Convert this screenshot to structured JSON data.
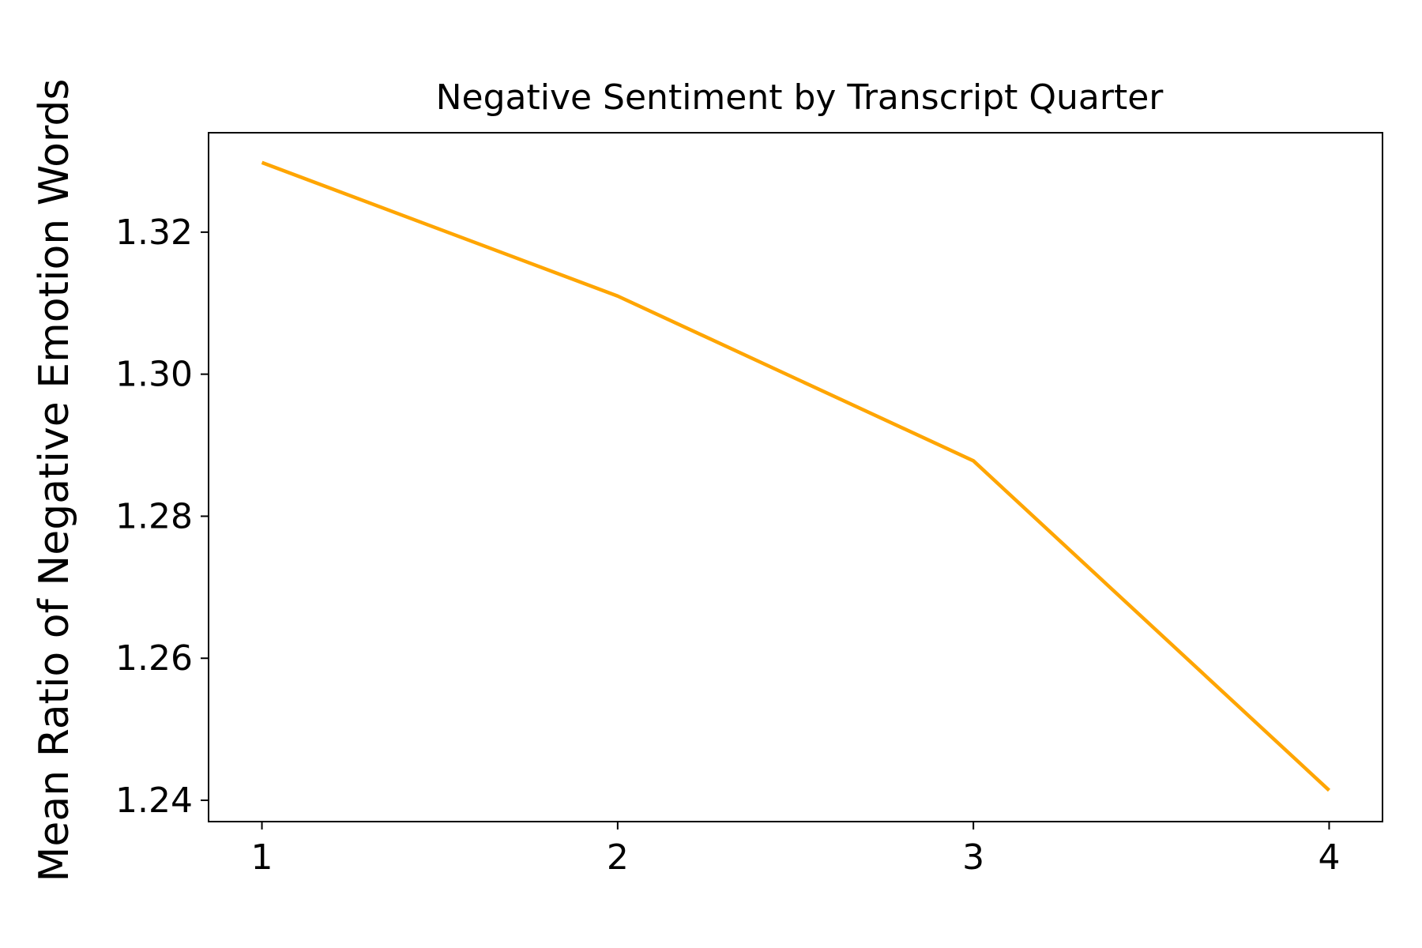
{
  "chart_data": {
    "type": "line",
    "title": "Negative Sentiment by Transcript Quarter",
    "xlabel": "",
    "ylabel": "Mean Ratio of Negative Emotion Words",
    "x": [
      1,
      2,
      3,
      4
    ],
    "xticks": [
      "1",
      "2",
      "3",
      "4"
    ],
    "xlim": [
      0.85,
      4.15
    ],
    "ylim": [
      1.237,
      1.334
    ],
    "yticks": [
      1.24,
      1.26,
      1.28,
      1.3,
      1.32
    ],
    "ytick_labels": [
      "1.24",
      "1.26",
      "1.28",
      "1.30",
      "1.32"
    ],
    "series": [
      {
        "values": [
          1.3298,
          1.311,
          1.2878,
          1.2414
        ],
        "color": "#FFA500"
      }
    ],
    "grid": false,
    "legend": "none"
  }
}
